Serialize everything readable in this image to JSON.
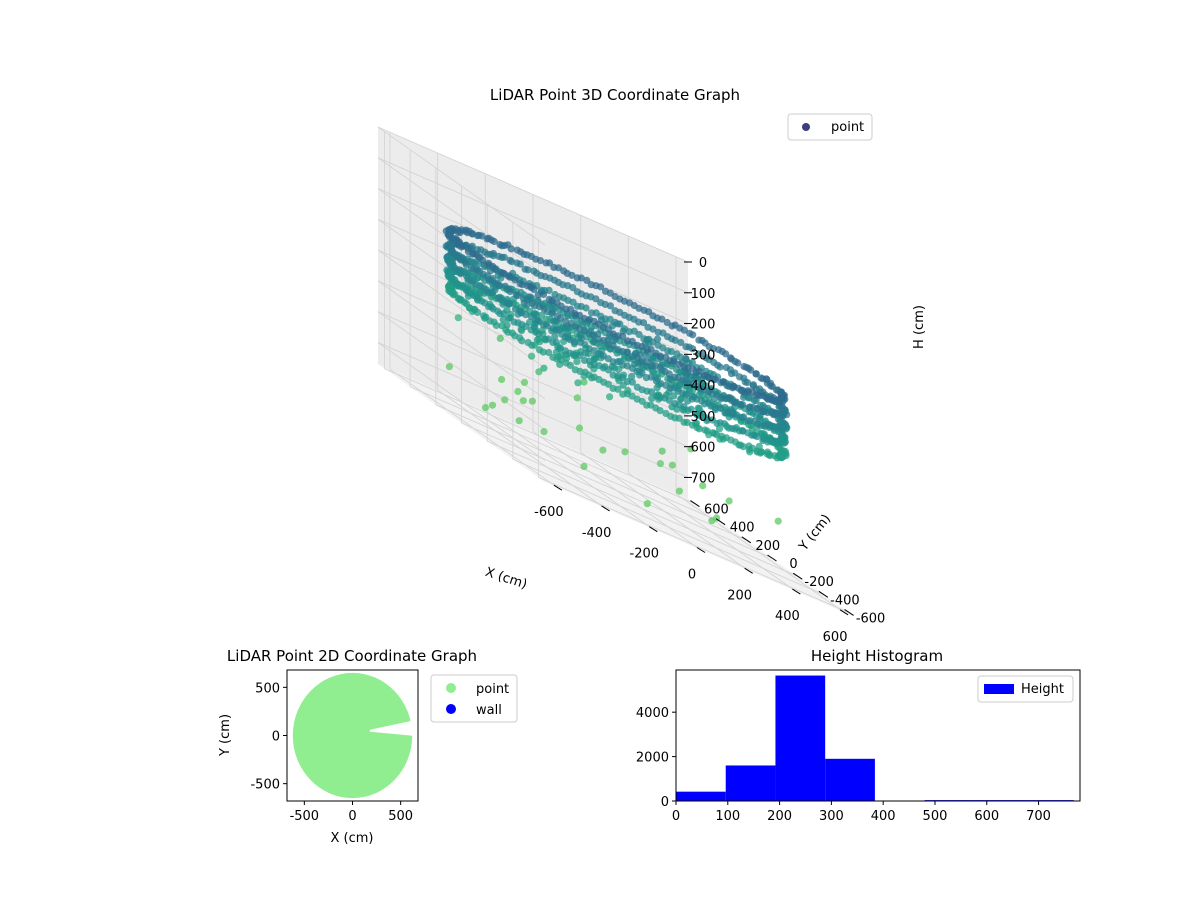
{
  "chart_data": [
    {
      "type": "scatter",
      "title": "LiDAR Point 3D Coordinate Graph",
      "xlabel": "X (cm)",
      "ylabel": "Y (cm)",
      "zlabel": "H (cm)",
      "xticks": [
        -600,
        -400,
        -200,
        0,
        200,
        400,
        600
      ],
      "yticks": [
        -600,
        -400,
        -200,
        0,
        200,
        400,
        600
      ],
      "zticks": [
        0,
        100,
        200,
        300,
        400,
        500,
        600,
        700
      ],
      "xlim": [
        -650,
        650
      ],
      "ylim": [
        -650,
        650
      ],
      "zlim": [
        770,
        0
      ],
      "z_axis_inverted": true,
      "legend": [
        {
          "name": "point",
          "color": "#3b2b85"
        }
      ],
      "legend_position": "upper right",
      "grid": true,
      "colormap": "viridis (by height)",
      "series": [
        {
          "name": "point",
          "description_shape": "ring of radius ~620 cm at heights 200–380, inner structure, sparse outliers below",
          "ring_radius": 620,
          "ring_height_range": [
            200,
            380
          ]
        }
      ]
    },
    {
      "type": "scatter",
      "title": "LiDAR Point 2D Coordinate Graph",
      "xlabel": "X (cm)",
      "ylabel": "Y (cm)",
      "xticks": [
        -500,
        0,
        500
      ],
      "yticks": [
        -500,
        0,
        500
      ],
      "xlim": [
        -680,
        680
      ],
      "ylim": [
        -680,
        680
      ],
      "grid": false,
      "series": [
        {
          "name": "point",
          "color": "#90ee90"
        },
        {
          "name": "wall",
          "color": "#0000ff"
        }
      ],
      "legend_position": "outside right"
    },
    {
      "type": "bar",
      "title": "Height Histogram",
      "series": [
        {
          "name": "Height",
          "color": "#0000ff"
        }
      ],
      "bin_edges": [
        0,
        96,
        192,
        288,
        384,
        480,
        576,
        672,
        768
      ],
      "values": [
        420,
        1600,
        5650,
        1900,
        0,
        40,
        40,
        40
      ],
      "xticks": [
        0,
        100,
        200,
        300,
        400,
        500,
        600,
        700
      ],
      "yticks": [
        0,
        2000,
        4000
      ],
      "xlim": [
        0,
        780
      ],
      "ylim": [
        0,
        5900
      ],
      "legend_position": "upper right",
      "grid": false
    }
  ]
}
